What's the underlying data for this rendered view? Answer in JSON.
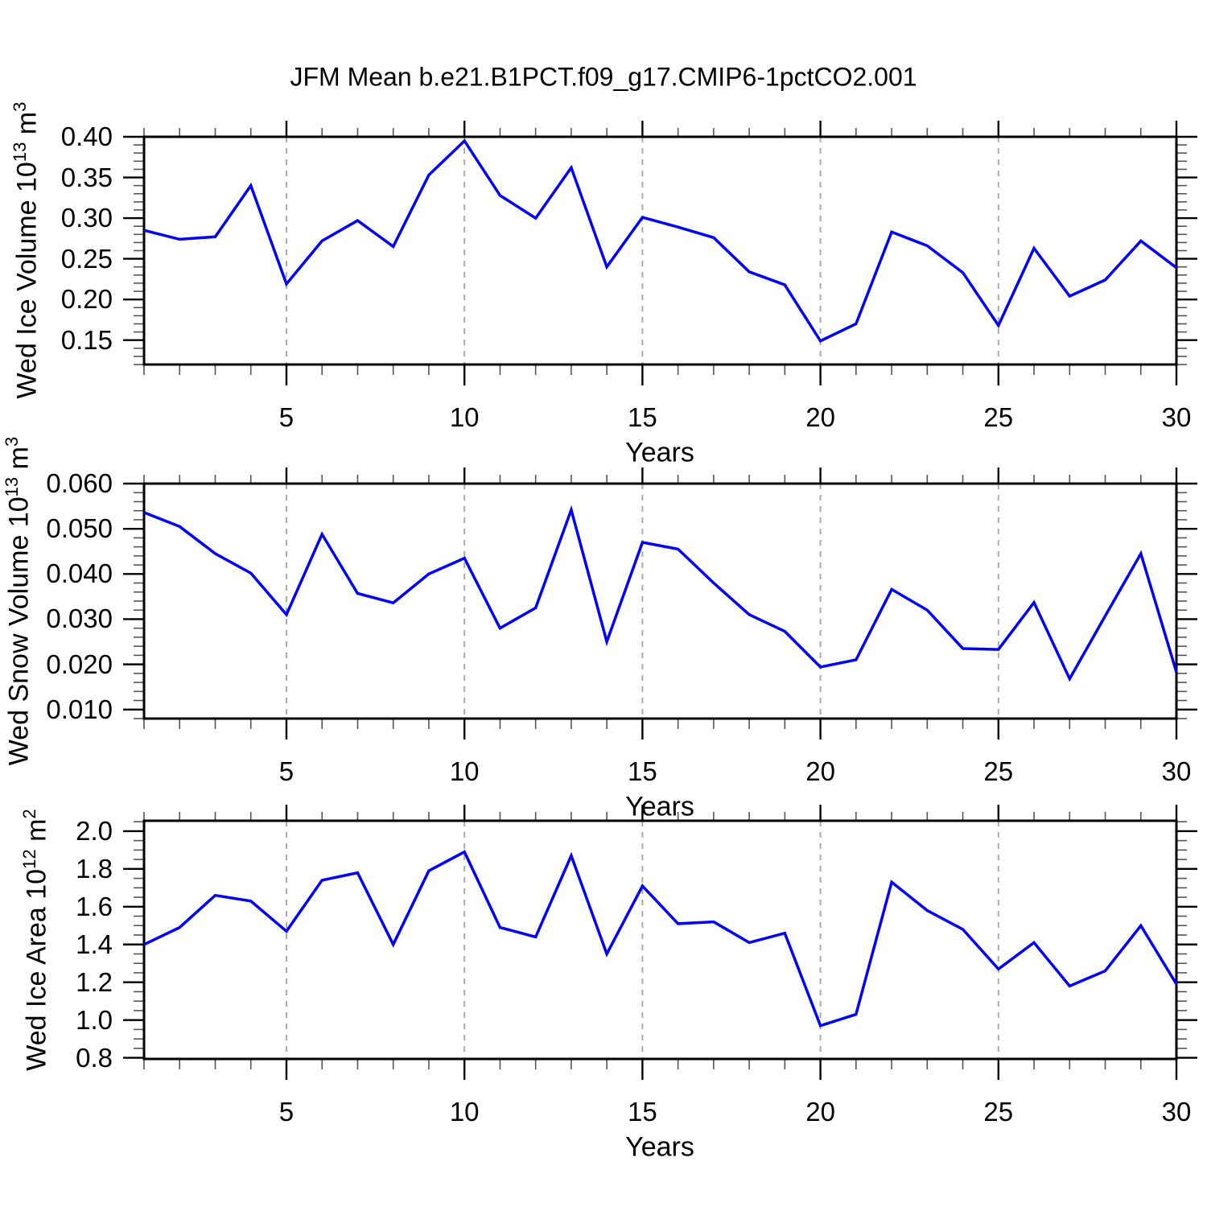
{
  "title": "JFM Mean b.e21.B1PCT.f09_g17.CMIP6-1pctCO2.001",
  "colors": {
    "line": "#0000ff",
    "grid": "#aaaaaa",
    "axis": "#000000",
    "minor_tick": "#555555"
  },
  "chart_data": {
    "type": "line",
    "xlabel": "Years",
    "xlim": [
      1,
      30
    ],
    "x_years": [
      1,
      2,
      3,
      4,
      5,
      6,
      7,
      8,
      9,
      10,
      11,
      12,
      13,
      14,
      15,
      16,
      17,
      18,
      19,
      20,
      21,
      22,
      23,
      24,
      25,
      26,
      27,
      28,
      29,
      30
    ],
    "xtick_labels": [
      "5",
      "10",
      "15",
      "20",
      "25",
      "30"
    ],
    "xtick_values": [
      5,
      10,
      15,
      20,
      25,
      30
    ],
    "x_minor_step": 1,
    "grid_years": [
      5,
      10,
      15,
      20,
      25
    ],
    "grid_style": "dashed-vertical",
    "panels": [
      {
        "name": "wed-ice-volume",
        "ylabel_main": "Wed Ice Volume 10",
        "ylabel_exp": "13",
        "ylabel_unit": " m",
        "ylabel_unit_exp": "3",
        "ylim": [
          0.12,
          0.4
        ],
        "ytick_labels": [
          "0.40",
          "0.35",
          "0.30",
          "0.25",
          "0.20",
          "0.15"
        ],
        "ytick_values": [
          0.4,
          0.35,
          0.3,
          0.25,
          0.2,
          0.15
        ],
        "y_minor_step": 0.01,
        "values": [
          0.285,
          0.274,
          0.277,
          0.34,
          0.219,
          0.272,
          0.297,
          0.265,
          0.353,
          0.395,
          0.328,
          0.3,
          0.362,
          0.24,
          0.301,
          0.289,
          0.276,
          0.234,
          0.218,
          0.149,
          0.17,
          0.283,
          0.266,
          0.233,
          0.168,
          0.263,
          0.204,
          0.224,
          0.272,
          0.239
        ]
      },
      {
        "name": "wed-snow-volume",
        "ylabel_main": "Wed Snow Volume 10",
        "ylabel_exp": "13",
        "ylabel_unit": " m",
        "ylabel_unit_exp": "3",
        "ylim": [
          0.008,
          0.06
        ],
        "ytick_labels": [
          "0.060",
          "0.050",
          "0.040",
          "0.030",
          "0.020",
          "0.010"
        ],
        "ytick_values": [
          0.06,
          0.05,
          0.04,
          0.03,
          0.02,
          0.01
        ],
        "y_minor_step": 0.002,
        "values": [
          0.0536,
          0.0505,
          0.0445,
          0.0402,
          0.031,
          0.0488,
          0.0357,
          0.0336,
          0.04,
          0.0435,
          0.028,
          0.0325,
          0.0542,
          0.025,
          0.047,
          0.0455,
          0.038,
          0.031,
          0.0273,
          0.0194,
          0.021,
          0.0366,
          0.032,
          0.0235,
          0.0233,
          0.0337,
          0.0168,
          0.0307,
          0.0445,
          0.0183
        ]
      },
      {
        "name": "wed-ice-area",
        "ylabel_main": "Wed Ice Area 10",
        "ylabel_exp": "12",
        "ylabel_unit": " m",
        "ylabel_unit_exp": "2",
        "ylim": [
          0.794,
          2.055
        ],
        "ytick_labels": [
          "2.0",
          "1.8",
          "1.6",
          "1.4",
          "1.2",
          "1.0",
          "0.8"
        ],
        "ytick_values": [
          2.0,
          1.8,
          1.6,
          1.4,
          1.2,
          1.0,
          0.8
        ],
        "y_minor_step": 0.05,
        "values": [
          1.4,
          1.49,
          1.66,
          1.63,
          1.47,
          1.74,
          1.78,
          1.4,
          1.79,
          1.89,
          1.49,
          1.44,
          1.87,
          1.35,
          1.71,
          1.51,
          1.52,
          1.41,
          1.46,
          0.97,
          1.03,
          1.73,
          1.58,
          1.48,
          1.27,
          1.41,
          1.18,
          1.26,
          1.5,
          1.19
        ]
      }
    ]
  }
}
